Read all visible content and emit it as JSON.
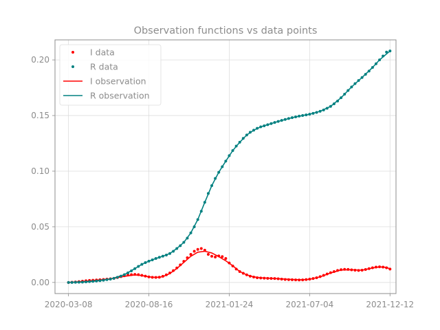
{
  "chart_data": {
    "type": "line",
    "title": "Observation functions vs data points",
    "xlabel": "",
    "ylabel": "",
    "x_ticks": [
      "2020-03-08",
      "2020-08-16",
      "2021-01-24",
      "2021-07-04",
      "2021-12-12"
    ],
    "y_ticks": [
      "0.00",
      "0.05",
      "0.10",
      "0.15",
      "0.20"
    ],
    "xlim": [
      "2020-02-10",
      "2021-12-24"
    ],
    "ylim": [
      -0.01,
      0.218
    ],
    "grid": true,
    "legend_position": "top-left",
    "colors": {
      "I": "#ff0000",
      "R": "#008080",
      "axis": "#8c8c8c",
      "grid": "#dddddd"
    },
    "series": [
      {
        "name": "I data",
        "kind": "points",
        "color": "#ff0000",
        "points": [
          [
            "2020-03-08",
            0.0
          ],
          [
            "2020-03-15",
            0.0002
          ],
          [
            "2020-03-22",
            0.0004
          ],
          [
            "2020-03-29",
            0.0007
          ],
          [
            "2020-04-05",
            0.0011
          ],
          [
            "2020-04-12",
            0.0015
          ],
          [
            "2020-04-19",
            0.0018
          ],
          [
            "2020-04-26",
            0.002
          ],
          [
            "2020-05-03",
            0.0022
          ],
          [
            "2020-05-10",
            0.0024
          ],
          [
            "2020-05-17",
            0.0027
          ],
          [
            "2020-05-24",
            0.003
          ],
          [
            "2020-05-31",
            0.0033
          ],
          [
            "2020-06-07",
            0.0037
          ],
          [
            "2020-06-14",
            0.0044
          ],
          [
            "2020-06-21",
            0.0052
          ],
          [
            "2020-06-28",
            0.006
          ],
          [
            "2020-07-05",
            0.0066
          ],
          [
            "2020-07-12",
            0.007
          ],
          [
            "2020-07-19",
            0.0072
          ],
          [
            "2020-07-26",
            0.007
          ],
          [
            "2020-08-02",
            0.0064
          ],
          [
            "2020-08-09",
            0.0057
          ],
          [
            "2020-08-16",
            0.005
          ],
          [
            "2020-08-23",
            0.0046
          ],
          [
            "2020-08-30",
            0.0045
          ],
          [
            "2020-09-06",
            0.0047
          ],
          [
            "2020-09-13",
            0.0055
          ],
          [
            "2020-09-20",
            0.0068
          ],
          [
            "2020-09-27",
            0.0085
          ],
          [
            "2020-10-04",
            0.0106
          ],
          [
            "2020-10-11",
            0.013
          ],
          [
            "2020-10-18",
            0.0158
          ],
          [
            "2020-10-25",
            0.019
          ],
          [
            "2020-11-01",
            0.0222
          ],
          [
            "2020-11-08",
            0.0252
          ],
          [
            "2020-11-15",
            0.028
          ],
          [
            "2020-11-22",
            0.0297
          ],
          [
            "2020-11-29",
            0.0305
          ],
          [
            "2020-12-06",
            0.029
          ],
          [
            "2020-12-13",
            0.0252
          ],
          [
            "2020-12-20",
            0.0235
          ],
          [
            "2020-12-27",
            0.0228
          ],
          [
            "2021-01-03",
            0.0238
          ],
          [
            "2021-01-10",
            0.0232
          ],
          [
            "2021-01-17",
            0.0215
          ],
          [
            "2021-01-24",
            0.0175
          ],
          [
            "2021-01-31",
            0.0148
          ],
          [
            "2021-02-07",
            0.012
          ],
          [
            "2021-02-14",
            0.0098
          ],
          [
            "2021-02-21",
            0.0082
          ],
          [
            "2021-02-28",
            0.0068
          ],
          [
            "2021-03-07",
            0.0056
          ],
          [
            "2021-03-14",
            0.0048
          ],
          [
            "2021-03-21",
            0.0042
          ],
          [
            "2021-03-28",
            0.004
          ],
          [
            "2021-04-04",
            0.0038
          ],
          [
            "2021-04-11",
            0.0037
          ],
          [
            "2021-04-18",
            0.0036
          ],
          [
            "2021-04-25",
            0.0035
          ],
          [
            "2021-05-02",
            0.0033
          ],
          [
            "2021-05-09",
            0.003
          ],
          [
            "2021-05-16",
            0.0027
          ],
          [
            "2021-05-23",
            0.0025
          ],
          [
            "2021-05-30",
            0.0024
          ],
          [
            "2021-06-06",
            0.0023
          ],
          [
            "2021-06-13",
            0.0022
          ],
          [
            "2021-06-20",
            0.0023
          ],
          [
            "2021-06-27",
            0.0026
          ],
          [
            "2021-07-04",
            0.003
          ],
          [
            "2021-07-11",
            0.0035
          ],
          [
            "2021-07-18",
            0.0042
          ],
          [
            "2021-07-25",
            0.0052
          ],
          [
            "2021-08-01",
            0.0064
          ],
          [
            "2021-08-08",
            0.0076
          ],
          [
            "2021-08-15",
            0.0088
          ],
          [
            "2021-08-22",
            0.0098
          ],
          [
            "2021-08-29",
            0.0108
          ],
          [
            "2021-09-05",
            0.0115
          ],
          [
            "2021-09-12",
            0.0118
          ],
          [
            "2021-09-19",
            0.0117
          ],
          [
            "2021-09-26",
            0.0113
          ],
          [
            "2021-10-03",
            0.011
          ],
          [
            "2021-10-10",
            0.0108
          ],
          [
            "2021-10-17",
            0.011
          ],
          [
            "2021-10-24",
            0.0116
          ],
          [
            "2021-10-31",
            0.0124
          ],
          [
            "2021-11-07",
            0.0132
          ],
          [
            "2021-11-14",
            0.0138
          ],
          [
            "2021-11-21",
            0.014
          ],
          [
            "2021-11-28",
            0.0138
          ],
          [
            "2021-12-05",
            0.0132
          ],
          [
            "2021-12-12",
            0.012
          ]
        ]
      },
      {
        "name": "R data",
        "kind": "points",
        "color": "#008080",
        "points": [
          [
            "2020-03-08",
            0.0
          ],
          [
            "2020-03-15",
            0.0
          ],
          [
            "2020-03-22",
            0.0001
          ],
          [
            "2020-03-29",
            0.0002
          ],
          [
            "2020-04-05",
            0.0003
          ],
          [
            "2020-04-12",
            0.0005
          ],
          [
            "2020-04-19",
            0.0007
          ],
          [
            "2020-04-26",
            0.001
          ],
          [
            "2020-05-03",
            0.0013
          ],
          [
            "2020-05-10",
            0.0016
          ],
          [
            "2020-05-17",
            0.002
          ],
          [
            "2020-05-24",
            0.0025
          ],
          [
            "2020-05-31",
            0.003
          ],
          [
            "2020-06-07",
            0.0037
          ],
          [
            "2020-06-14",
            0.0046
          ],
          [
            "2020-06-21",
            0.0057
          ],
          [
            "2020-06-28",
            0.007
          ],
          [
            "2020-07-05",
            0.0086
          ],
          [
            "2020-07-12",
            0.0104
          ],
          [
            "2020-07-19",
            0.0124
          ],
          [
            "2020-07-26",
            0.0144
          ],
          [
            "2020-08-02",
            0.0163
          ],
          [
            "2020-08-09",
            0.0178
          ],
          [
            "2020-08-16",
            0.0191
          ],
          [
            "2020-08-23",
            0.0203
          ],
          [
            "2020-08-30",
            0.0215
          ],
          [
            "2020-09-06",
            0.0226
          ],
          [
            "2020-09-13",
            0.0236
          ],
          [
            "2020-09-20",
            0.0246
          ],
          [
            "2020-09-27",
            0.026
          ],
          [
            "2020-10-04",
            0.028
          ],
          [
            "2020-10-11",
            0.0305
          ],
          [
            "2020-10-18",
            0.033
          ],
          [
            "2020-10-25",
            0.036
          ],
          [
            "2020-11-01",
            0.0398
          ],
          [
            "2020-11-08",
            0.0445
          ],
          [
            "2020-11-15",
            0.05
          ],
          [
            "2020-11-22",
            0.0565
          ],
          [
            "2020-11-29",
            0.064
          ],
          [
            "2020-12-06",
            0.072
          ],
          [
            "2020-12-13",
            0.08
          ],
          [
            "2020-12-20",
            0.087
          ],
          [
            "2020-12-27",
            0.0935
          ],
          [
            "2021-01-03",
            0.099
          ],
          [
            "2021-01-10",
            0.104
          ],
          [
            "2021-01-17",
            0.109
          ],
          [
            "2021-01-24",
            0.114
          ],
          [
            "2021-01-31",
            0.1185
          ],
          [
            "2021-02-07",
            0.1225
          ],
          [
            "2021-02-14",
            0.126
          ],
          [
            "2021-02-21",
            0.1295
          ],
          [
            "2021-02-28",
            0.1325
          ],
          [
            "2021-03-07",
            0.135
          ],
          [
            "2021-03-14",
            0.1368
          ],
          [
            "2021-03-21",
            0.1385
          ],
          [
            "2021-03-28",
            0.1398
          ],
          [
            "2021-04-04",
            0.1408
          ],
          [
            "2021-04-11",
            0.1418
          ],
          [
            "2021-04-18",
            0.1428
          ],
          [
            "2021-04-25",
            0.1438
          ],
          [
            "2021-05-02",
            0.1447
          ],
          [
            "2021-05-09",
            0.1456
          ],
          [
            "2021-05-16",
            0.1465
          ],
          [
            "2021-05-23",
            0.1473
          ],
          [
            "2021-05-30",
            0.1481
          ],
          [
            "2021-06-06",
            0.1488
          ],
          [
            "2021-06-13",
            0.1495
          ],
          [
            "2021-06-20",
            0.15
          ],
          [
            "2021-06-27",
            0.1506
          ],
          [
            "2021-07-04",
            0.1512
          ],
          [
            "2021-07-11",
            0.152
          ],
          [
            "2021-07-18",
            0.1528
          ],
          [
            "2021-07-25",
            0.1538
          ],
          [
            "2021-08-01",
            0.155
          ],
          [
            "2021-08-08",
            0.1565
          ],
          [
            "2021-08-15",
            0.1582
          ],
          [
            "2021-08-22",
            0.1605
          ],
          [
            "2021-08-29",
            0.163
          ],
          [
            "2021-09-05",
            0.166
          ],
          [
            "2021-09-12",
            0.1692
          ],
          [
            "2021-09-19",
            0.1725
          ],
          [
            "2021-09-26",
            0.1757
          ],
          [
            "2021-10-03",
            0.1787
          ],
          [
            "2021-10-10",
            0.1815
          ],
          [
            "2021-10-17",
            0.1842
          ],
          [
            "2021-10-24",
            0.187
          ],
          [
            "2021-10-31",
            0.19
          ],
          [
            "2021-11-07",
            0.1932
          ],
          [
            "2021-11-14",
            0.1965
          ],
          [
            "2021-11-21",
            0.2
          ],
          [
            "2021-11-28",
            0.2035
          ],
          [
            "2021-12-05",
            0.207
          ],
          [
            "2021-12-12",
            0.208
          ]
        ]
      },
      {
        "name": "I observation",
        "kind": "line",
        "color": "#ff0000",
        "points": [
          [
            "2020-03-08",
            0.0
          ],
          [
            "2020-04-05",
            0.0008
          ],
          [
            "2020-05-03",
            0.002
          ],
          [
            "2020-05-31",
            0.0032
          ],
          [
            "2020-06-28",
            0.0055
          ],
          [
            "2020-07-19",
            0.0068
          ],
          [
            "2020-08-02",
            0.0062
          ],
          [
            "2020-08-16",
            0.005
          ],
          [
            "2020-08-30",
            0.0045
          ],
          [
            "2020-09-13",
            0.0052
          ],
          [
            "2020-09-27",
            0.008
          ],
          [
            "2020-10-11",
            0.0125
          ],
          [
            "2020-10-25",
            0.018
          ],
          [
            "2020-11-08",
            0.0235
          ],
          [
            "2020-11-22",
            0.0272
          ],
          [
            "2020-12-06",
            0.028
          ],
          [
            "2020-12-20",
            0.0265
          ],
          [
            "2021-01-03",
            0.0232
          ],
          [
            "2021-01-17",
            0.0195
          ],
          [
            "2021-01-31",
            0.015
          ],
          [
            "2021-02-14",
            0.0098
          ],
          [
            "2021-02-28",
            0.0068
          ],
          [
            "2021-03-14",
            0.005
          ],
          [
            "2021-03-28",
            0.0042
          ],
          [
            "2021-04-18",
            0.0037
          ],
          [
            "2021-05-09",
            0.0032
          ],
          [
            "2021-05-30",
            0.0026
          ],
          [
            "2021-06-20",
            0.0024
          ],
          [
            "2021-07-04",
            0.0028
          ],
          [
            "2021-07-25",
            0.005
          ],
          [
            "2021-08-15",
            0.0085
          ],
          [
            "2021-09-05",
            0.0112
          ],
          [
            "2021-09-26",
            0.0114
          ],
          [
            "2021-10-17",
            0.011
          ],
          [
            "2021-11-07",
            0.013
          ],
          [
            "2021-11-21",
            0.014
          ],
          [
            "2021-12-05",
            0.0135
          ],
          [
            "2021-12-12",
            0.0122
          ]
        ]
      },
      {
        "name": "R observation",
        "kind": "line",
        "color": "#008080",
        "points": [
          [
            "2020-03-08",
            0.0
          ],
          [
            "2020-04-05",
            0.0003
          ],
          [
            "2020-05-03",
            0.0013
          ],
          [
            "2020-05-31",
            0.003
          ],
          [
            "2020-06-28",
            0.007
          ],
          [
            "2020-07-19",
            0.0124
          ],
          [
            "2020-08-02",
            0.0163
          ],
          [
            "2020-08-16",
            0.0191
          ],
          [
            "2020-08-30",
            0.0215
          ],
          [
            "2020-09-13",
            0.0236
          ],
          [
            "2020-09-27",
            0.026
          ],
          [
            "2020-10-11",
            0.0305
          ],
          [
            "2020-10-25",
            0.036
          ],
          [
            "2020-11-08",
            0.0445
          ],
          [
            "2020-11-22",
            0.0565
          ],
          [
            "2020-12-06",
            0.072
          ],
          [
            "2020-12-20",
            0.087
          ],
          [
            "2021-01-03",
            0.099
          ],
          [
            "2021-01-17",
            0.109
          ],
          [
            "2021-01-31",
            0.1185
          ],
          [
            "2021-02-14",
            0.126
          ],
          [
            "2021-02-28",
            0.1325
          ],
          [
            "2021-03-14",
            0.1368
          ],
          [
            "2021-03-28",
            0.1398
          ],
          [
            "2021-04-18",
            0.1428
          ],
          [
            "2021-05-09",
            0.1456
          ],
          [
            "2021-05-30",
            0.1481
          ],
          [
            "2021-06-20",
            0.15
          ],
          [
            "2021-07-04",
            0.1512
          ],
          [
            "2021-07-25",
            0.1538
          ],
          [
            "2021-08-15",
            0.1582
          ],
          [
            "2021-09-05",
            0.166
          ],
          [
            "2021-09-26",
            0.1757
          ],
          [
            "2021-10-17",
            0.1842
          ],
          [
            "2021-11-07",
            0.1932
          ],
          [
            "2021-11-21",
            0.2
          ],
          [
            "2021-12-12",
            0.208
          ]
        ]
      }
    ]
  }
}
